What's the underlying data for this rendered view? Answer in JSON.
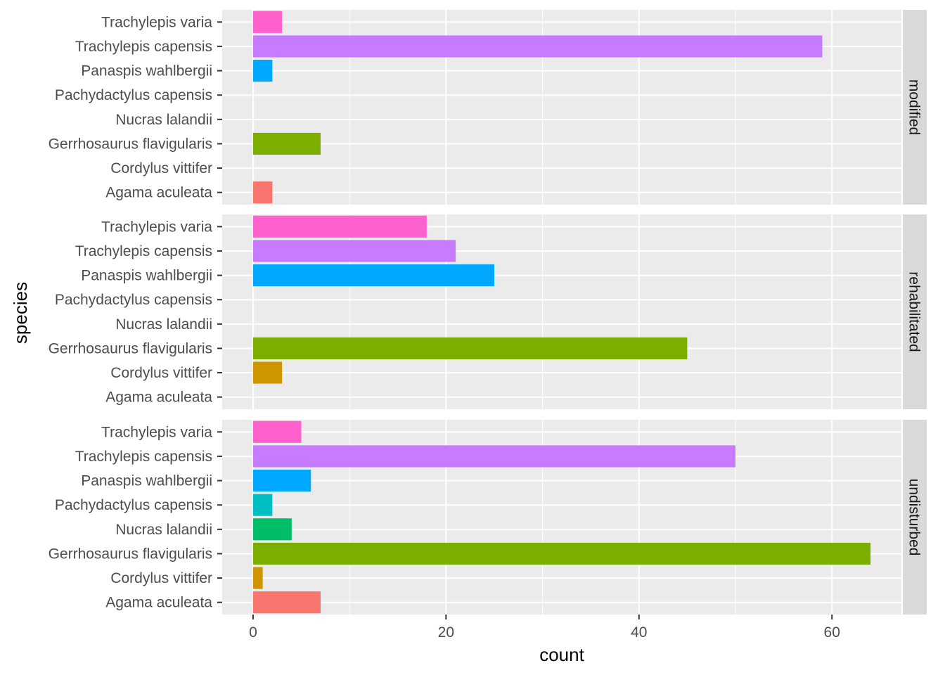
{
  "chart_data": {
    "type": "bar",
    "orientation": "horizontal",
    "facet": "rows",
    "xlabel": "count",
    "ylabel": "species",
    "xlim": [
      -3.2,
      67.2
    ],
    "x_ticks": [
      0,
      20,
      40,
      60
    ],
    "x_tick_labels": [
      "0",
      "20",
      "40",
      "60"
    ],
    "grid": true,
    "legend": "none",
    "categories": [
      "Agama aculeata",
      "Cordylus vittifer",
      "Gerrhosaurus flavigularis",
      "Nucras lalandii",
      "Pachydactylus capensis",
      "Panaspis wahlbergii",
      "Trachylepis capensis",
      "Trachylepis varia"
    ],
    "colors": [
      "#F8766D",
      "#CD9600",
      "#7CAE00",
      "#00BE67",
      "#00BFC4",
      "#00A9FF",
      "#C77CFF",
      "#FF61CC"
    ],
    "panels": [
      {
        "name": "modified",
        "values": [
          2,
          0,
          7,
          0,
          0,
          2,
          59,
          3
        ]
      },
      {
        "name": "rehabilitated",
        "values": [
          0,
          3,
          45,
          0,
          0,
          25,
          21,
          18
        ]
      },
      {
        "name": "undisturbed",
        "values": [
          7,
          1,
          64,
          4,
          2,
          6,
          50,
          5
        ]
      }
    ]
  }
}
